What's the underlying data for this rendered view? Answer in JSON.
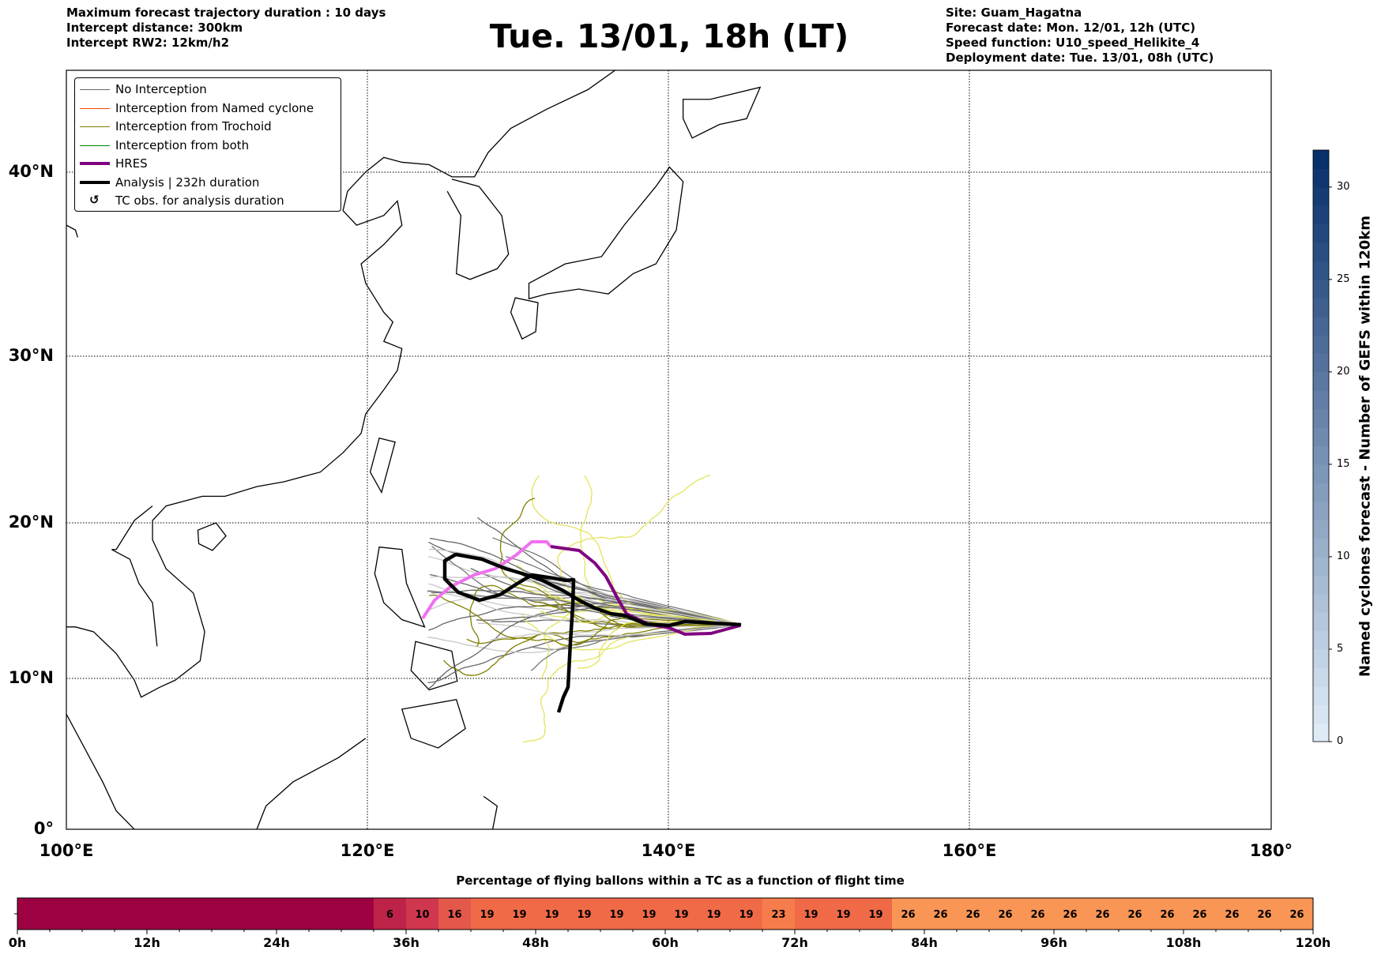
{
  "header_left": [
    "Maximum forecast trajectory duration : 10 days",
    "Intercept distance: 300km",
    "Intercept RW2: 12km/h2"
  ],
  "title": "Tue. 13/01, 18h (LT)",
  "header_right": [
    "Site: Guam_Hagatna",
    "Forecast date: Mon. 12/01, 12h (UTC)",
    "Speed function: U10_speed_Helikite_4",
    "Deployment date: Tue. 13/01, 08h (UTC)"
  ],
  "legend": [
    {
      "label": "No Interception",
      "color": "#666666",
      "kind": "thin"
    },
    {
      "label": "Interception from Named cyclone",
      "color": "#ff4500",
      "kind": "thin"
    },
    {
      "label": "Interception from Trochoid",
      "color": "#808000",
      "kind": "thin"
    },
    {
      "label": "Interception from both",
      "color": "#008000",
      "kind": "thin"
    },
    {
      "label": "HRES",
      "color": "#800080",
      "kind": "thick"
    },
    {
      "label": "Analysis | 232h duration",
      "color": "#000000",
      "kind": "thick"
    },
    {
      "label": "TC obs. for analysis duration",
      "color": "#000000",
      "kind": "symbol",
      "symbol": "↺"
    }
  ],
  "lat_labels": [
    "40°N",
    "30°N",
    "20°N",
    "10°N",
    "0°"
  ],
  "lon_labels": [
    "100°E",
    "120°E",
    "140°E",
    "160°E",
    "180°"
  ],
  "colorbar": {
    "label": "Named cyclones forecast - Number of GEFS within 120km",
    "ticks": [
      "0",
      "5",
      "10",
      "15",
      "20",
      "25",
      "30"
    ],
    "max": 32
  },
  "flight_bar": {
    "title": "Percentage of flying ballons within a TC as a function of flight time",
    "tick_labels": [
      "0h",
      "12h",
      "24h",
      "36h",
      "48h",
      "60h",
      "72h",
      "84h",
      "96h",
      "108h",
      "120h"
    ],
    "step_hours": 3,
    "values": [
      0,
      0,
      0,
      0,
      0,
      0,
      0,
      0,
      0,
      0,
      0,
      6,
      10,
      16,
      19,
      19,
      19,
      19,
      19,
      19,
      19,
      19,
      19,
      23,
      19,
      19,
      19,
      26,
      26,
      26,
      26,
      26,
      26,
      26,
      26,
      26,
      26,
      26,
      26,
      26
    ],
    "colors": {
      "0": "#9e0142",
      "6": "#bd2249",
      "10": "#d0374e",
      "16": "#e4574b",
      "19": "#f06a47",
      "23": "#f67d4b",
      "26": "#f99555"
    }
  }
}
